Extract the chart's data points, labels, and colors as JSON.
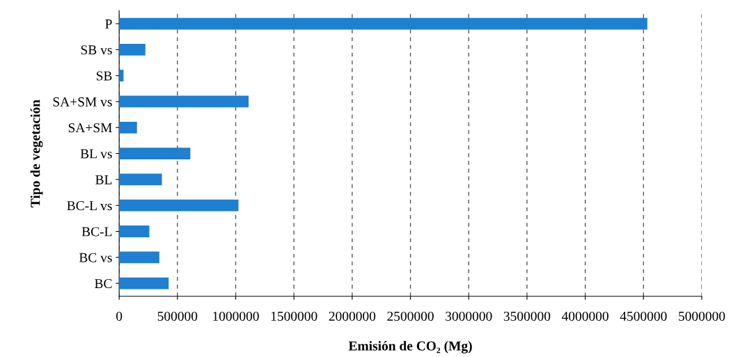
{
  "chart_data": {
    "type": "bar",
    "orientation": "horizontal",
    "xlabel": "Emisión de CO₂ (Mg)",
    "ylabel": "Tipo de vegetación",
    "categories": [
      "P",
      "SB vs",
      "SB",
      "SA+SM vs",
      "SA+SM",
      "BL vs",
      "BL",
      "BC-L vs",
      "BC-L",
      "BC vs",
      "BC"
    ],
    "values": [
      4533000,
      225000,
      38000,
      1111000,
      153000,
      611000,
      367000,
      1024000,
      259000,
      345000,
      425000
    ],
    "color": "#1f7fd0",
    "xlim": [
      0,
      5000000
    ],
    "xticks": [
      0,
      500000,
      1000000,
      1500000,
      2000000,
      2500000,
      3000000,
      3500000,
      4000000,
      4500000,
      5000000
    ],
    "grid": "x"
  }
}
